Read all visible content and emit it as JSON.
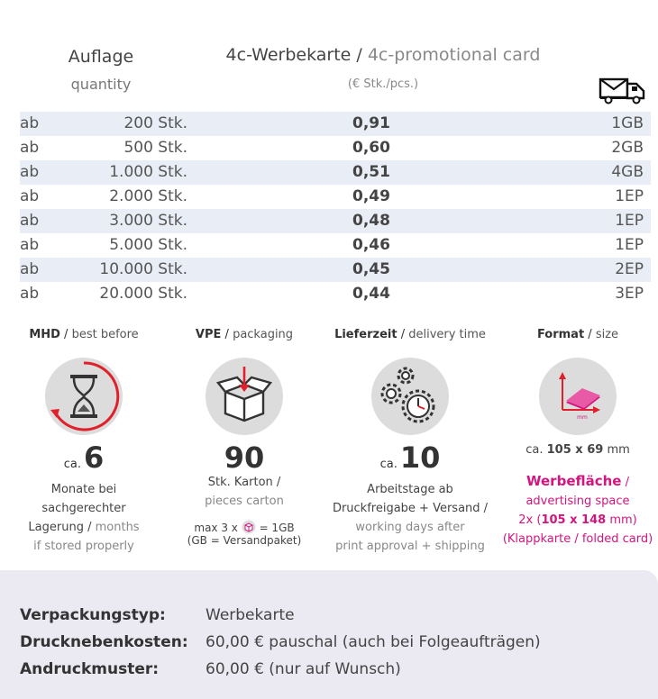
{
  "header": {
    "quantity_de": "Auflage",
    "quantity_en": "quantity",
    "product_de": "4c-Werbekarte",
    "product_sep": " / ",
    "product_en": "4c-promotional card",
    "price_unit": "(€ Stk./pcs.)",
    "shipping_icon": "truck-envelope-icon"
  },
  "rows": [
    {
      "prefix": "ab",
      "qty": "200 Stk.",
      "price": "0,91",
      "ship": "1GB"
    },
    {
      "prefix": "ab",
      "qty": "500 Stk.",
      "price": "0,60",
      "ship": "2GB"
    },
    {
      "prefix": "ab",
      "qty": "1.000 Stk.",
      "price": "0,51",
      "ship": "4GB"
    },
    {
      "prefix": "ab",
      "qty": "2.000 Stk.",
      "price": "0,49",
      "ship": "1EP"
    },
    {
      "prefix": "ab",
      "qty": "3.000 Stk.",
      "price": "0,48",
      "ship": "1EP"
    },
    {
      "prefix": "ab",
      "qty": "5.000 Stk.",
      "price": "0,46",
      "ship": "1EP"
    },
    {
      "prefix": "ab",
      "qty": "10.000 Stk.",
      "price": "0,45",
      "ship": "2EP"
    },
    {
      "prefix": "ab",
      "qty": "20.000 Stk.",
      "price": "0,44",
      "ship": "3EP"
    }
  ],
  "features": {
    "mhd": {
      "title_de": "MHD",
      "title_en": "best before",
      "icon": "hourglass-icon",
      "ca": "ca.",
      "value": "6",
      "line1": "Monate bei",
      "line2": "sachgerechter",
      "line3_de": "Lagerung /",
      "line3_en": "months",
      "line4": "if stored properly"
    },
    "vpe": {
      "title_de": "VPE",
      "title_en": "packaging",
      "icon": "box-icon",
      "value": "90",
      "line1": "Stk. Karton /",
      "line2": "pieces carton",
      "note1_a": "max 3 x",
      "note1_b": "= 1GB",
      "note2": "(GB = Versandpaket)"
    },
    "lieferzeit": {
      "title_de": "Lieferzeit",
      "title_en": "delivery time",
      "icon": "gears-clock-icon",
      "ca": "ca.",
      "value": "10",
      "line1": "Arbeitstage ab",
      "line2": "Druckfreigabe + Versand /",
      "line3": "working days after",
      "line4": "print approval + shipping"
    },
    "format": {
      "title_de": "Format",
      "title_en": "size",
      "icon": "card-dimensions-icon",
      "icon_label": "mm",
      "size_ca": "ca.",
      "size_value": "105 x 69",
      "size_unit": "mm",
      "adv_title": "Werbefläche",
      "adv_line1": "advertising space",
      "adv_line2_a": "2x (",
      "adv_line2_b": "105 x 148",
      "adv_line2_c": "mm)",
      "adv_line3": "(Klappkarte / folded card)"
    }
  },
  "info": [
    {
      "key": "Verpackungstyp:",
      "value": "Werbekarte"
    },
    {
      "key": "Drucknebenkosten:",
      "value": "60,00 € pauschal (auch bei Folgeaufträgen)"
    },
    {
      "key": "Andruckmuster:",
      "value": "60,00 € (nur auf Wunsch)"
    }
  ],
  "colors": {
    "accent": "#d3157f",
    "row_shade": "#e9edf6",
    "info_bg": "#ebe9f1",
    "icon_red": "#e0202a"
  }
}
